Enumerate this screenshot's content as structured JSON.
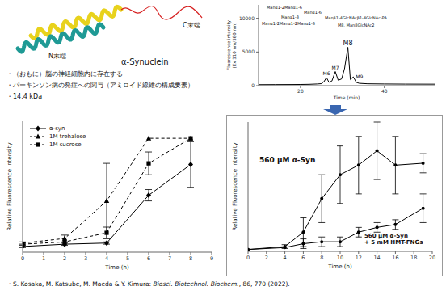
{
  "texts": {
    "n_terminus": "N末端",
    "c_terminus": "C末端",
    "protein_name": "α-Synuclein",
    "bullets": [
      "・（おもに）脳の神経細胞内に存在する",
      "・パーキンソン病の発症への関与（アミロイド線維の構成要素）",
      "・14.4 kDa"
    ],
    "citation": {
      "prefix": "・S. Kosaka, M. Katsube, M. Maeda & Y. Kimura: ",
      "journal": "Biosci. Biotechnol. Biochem.",
      "suffix": ", 86, 770 (2022)."
    }
  },
  "chart_data": [
    {
      "type": "line",
      "x_label": "Time (min)",
      "y_label": "Fluorescence intensity (Ex 310 nm/380 nm)",
      "color": "#000000",
      "x": [
        10,
        14,
        18,
        20,
        22,
        24,
        25,
        25.6,
        26.2,
        26.8,
        27.5,
        28.3,
        29,
        29.8,
        30.5,
        31.3,
        31.9,
        32.6,
        33.3,
        34,
        36,
        40,
        45,
        52
      ],
      "values": [
        150,
        160,
        170,
        180,
        200,
        250,
        300,
        600,
        1200,
        500,
        700,
        2100,
        800,
        1000,
        2500,
        5700,
        900,
        1300,
        500,
        350,
        280,
        250,
        230,
        220
      ],
      "xlim": [
        10,
        52
      ],
      "xticks": [
        20,
        40
      ],
      "ylim": [
        0,
        12000
      ],
      "yticks": [
        0,
        5000,
        10000
      ],
      "peaks": [
        {
          "label": "M6",
          "x": 26.2,
          "y": 1200
        },
        {
          "label": "M7",
          "x": 28.3,
          "y": 2100
        },
        {
          "label": "M8",
          "x": 31.3,
          "y": 5700
        },
        {
          "label": "M9",
          "x": 32.6,
          "y": 1300
        }
      ],
      "annotations": [
        "Manα1-2Manα1-6",
        "Manα1-6",
        "Manα1-3",
        "Manα1-2Manα1-2Manα1-3",
        "Manβ1-4GlcNAcβ1-4GlcNAc-PA",
        "M8, Man8GlcNAc2"
      ]
    },
    {
      "type": "line",
      "x_label": "Time (h)",
      "y_label": "Relative Fluorescence intensity",
      "x": [
        0,
        2,
        4,
        6,
        8
      ],
      "xlim": [
        0,
        9
      ],
      "xticks": [
        0,
        1,
        2,
        3,
        4,
        5,
        6,
        7,
        8,
        9
      ],
      "ylim": [
        0,
        1.15
      ],
      "tick_labels": "x",
      "legend": "upper left",
      "series": [
        {
          "name": "α-syn",
          "color": "#000000",
          "marker": "diamond",
          "line_style": "solid",
          "values": [
            0.05,
            0.07,
            0.08,
            0.5,
            0.77
          ],
          "errors": [
            0.01,
            0.01,
            0.01,
            0.05,
            0.2
          ]
        },
        {
          "name": "1M trehalose",
          "color": "#000000",
          "marker": "triangle",
          "line_style": "dashed",
          "values": [
            0.08,
            0.12,
            0.45,
            1.0,
            1.0
          ],
          "errors": [
            0.01,
            0.03,
            0.33,
            null,
            null
          ]
        },
        {
          "name": "1M sucrose",
          "color": "#000000",
          "marker": "square",
          "line_style": "dashed",
          "values": [
            0.07,
            0.09,
            0.17,
            0.78,
            1.0
          ],
          "errors": [
            null,
            null,
            0.05,
            0.1,
            null
          ]
        }
      ]
    },
    {
      "type": "line",
      "x_label": "Time (h)",
      "y_label": "Relative Fluorescence intensity",
      "x": [
        0,
        4,
        6,
        8,
        10,
        12,
        14,
        16,
        19
      ],
      "xlim": [
        0,
        20
      ],
      "xticks": [
        0,
        2,
        4,
        6,
        8,
        10,
        12,
        14,
        16,
        18,
        20
      ],
      "ylim": [
        0,
        1.35
      ],
      "tick_labels": "x",
      "series": [
        {
          "name": "560 μM α-Syn",
          "color": "#000000",
          "marker": "circle",
          "line_style": "solid",
          "values": [
            0.02,
            0.05,
            0.2,
            0.55,
            0.8,
            0.9,
            1.05,
            0.9,
            0.92
          ],
          "errors": [
            null,
            0.02,
            0.15,
            0.25,
            0.3,
            0.3,
            0.3,
            0.3,
            0.1
          ]
        },
        {
          "name": "560 μM α-Syn + 5 mM HMT-FNGs",
          "color": "#000000",
          "marker": "circle",
          "line_style": "solid",
          "values": [
            0.02,
            0.04,
            0.08,
            0.1,
            0.1,
            0.2,
            0.25,
            0.28,
            0.45
          ],
          "errors": [
            null,
            null,
            0.05,
            0.05,
            0.05,
            0.05,
            0.05,
            0.05,
            0.15
          ]
        }
      ]
    }
  ]
}
